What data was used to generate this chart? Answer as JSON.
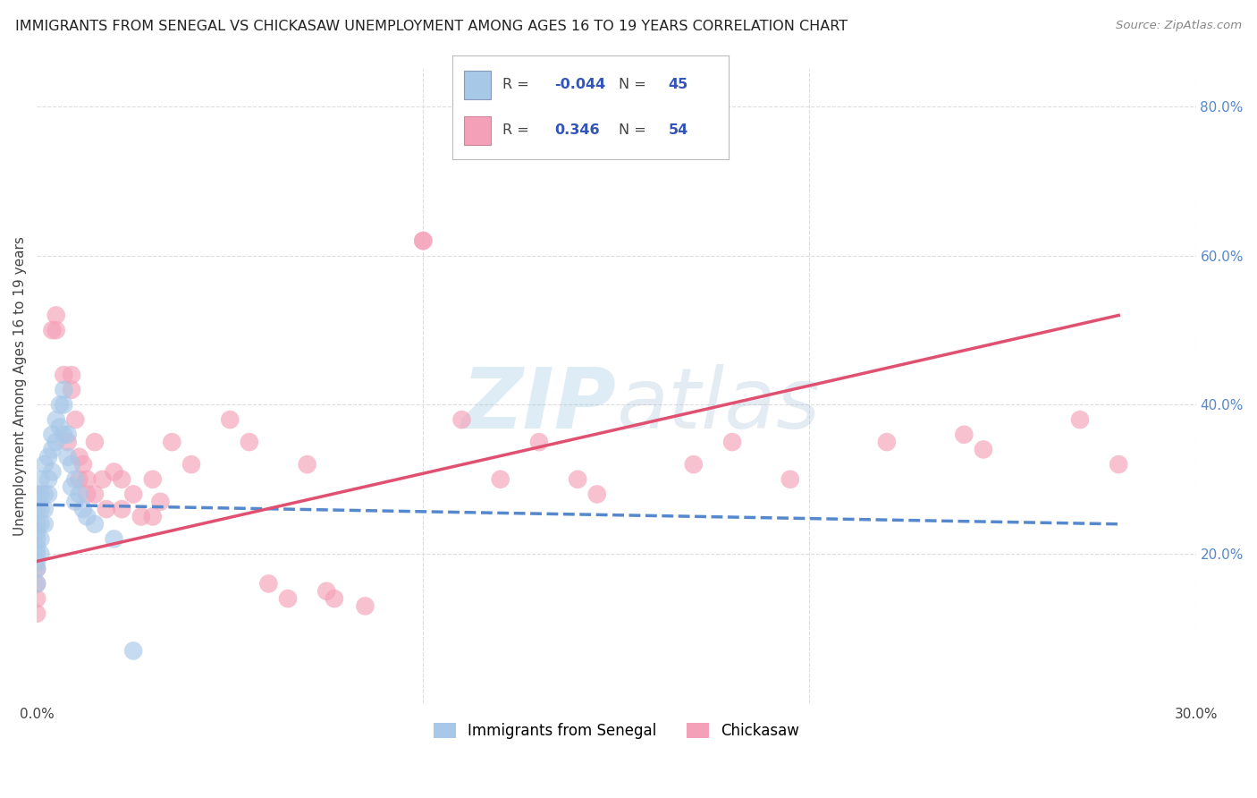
{
  "title": "IMMIGRANTS FROM SENEGAL VS CHICKASAW UNEMPLOYMENT AMONG AGES 16 TO 19 YEARS CORRELATION CHART",
  "source": "Source: ZipAtlas.com",
  "ylabel": "Unemployment Among Ages 16 to 19 years",
  "xlabel_blue": "Immigrants from Senegal",
  "xlabel_pink": "Chickasaw",
  "xlim": [
    0.0,
    0.3
  ],
  "ylim": [
    0.0,
    0.85
  ],
  "legend_blue_R": "-0.044",
  "legend_blue_N": "45",
  "legend_pink_R": "0.346",
  "legend_pink_N": "54",
  "blue_color": "#a8c8e8",
  "pink_color": "#f4a0b8",
  "trend_blue_color": "#5588cc",
  "trend_pink_color": "#e05070",
  "blue_scatter_x": [
    0.0,
    0.0,
    0.0,
    0.0,
    0.0,
    0.0,
    0.0,
    0.0,
    0.0,
    0.0,
    0.001,
    0.001,
    0.001,
    0.001,
    0.001,
    0.001,
    0.002,
    0.002,
    0.002,
    0.002,
    0.003,
    0.003,
    0.003,
    0.004,
    0.004,
    0.004,
    0.005,
    0.005,
    0.006,
    0.006,
    0.007,
    0.007,
    0.008,
    0.008,
    0.009,
    0.009,
    0.01,
    0.01,
    0.011,
    0.012,
    0.013,
    0.015,
    0.02,
    0.025,
    0.007
  ],
  "blue_scatter_y": [
    0.28,
    0.26,
    0.24,
    0.23,
    0.22,
    0.21,
    0.2,
    0.19,
    0.18,
    0.16,
    0.3,
    0.28,
    0.26,
    0.24,
    0.22,
    0.2,
    0.32,
    0.28,
    0.26,
    0.24,
    0.33,
    0.3,
    0.28,
    0.36,
    0.34,
    0.31,
    0.38,
    0.35,
    0.4,
    0.37,
    0.4,
    0.36,
    0.36,
    0.33,
    0.32,
    0.29,
    0.3,
    0.27,
    0.28,
    0.26,
    0.25,
    0.24,
    0.22,
    0.07,
    0.42
  ],
  "pink_scatter_x": [
    0.0,
    0.0,
    0.0,
    0.0,
    0.004,
    0.005,
    0.005,
    0.007,
    0.008,
    0.009,
    0.009,
    0.01,
    0.011,
    0.011,
    0.012,
    0.013,
    0.013,
    0.015,
    0.015,
    0.017,
    0.018,
    0.02,
    0.022,
    0.022,
    0.025,
    0.027,
    0.03,
    0.03,
    0.032,
    0.035,
    0.04,
    0.05,
    0.055,
    0.06,
    0.065,
    0.07,
    0.075,
    0.077,
    0.085,
    0.1,
    0.1,
    0.11,
    0.12,
    0.13,
    0.14,
    0.145,
    0.17,
    0.18,
    0.195,
    0.22,
    0.24,
    0.245,
    0.27,
    0.28
  ],
  "pink_scatter_y": [
    0.18,
    0.16,
    0.14,
    0.12,
    0.5,
    0.5,
    0.52,
    0.44,
    0.35,
    0.44,
    0.42,
    0.38,
    0.33,
    0.3,
    0.32,
    0.3,
    0.28,
    0.35,
    0.28,
    0.3,
    0.26,
    0.31,
    0.3,
    0.26,
    0.28,
    0.25,
    0.3,
    0.25,
    0.27,
    0.35,
    0.32,
    0.38,
    0.35,
    0.16,
    0.14,
    0.32,
    0.15,
    0.14,
    0.13,
    0.62,
    0.62,
    0.38,
    0.3,
    0.35,
    0.3,
    0.28,
    0.32,
    0.35,
    0.3,
    0.35,
    0.36,
    0.34,
    0.38,
    0.32
  ],
  "blue_trend_x": [
    0.0,
    0.28
  ],
  "blue_trend_y": [
    0.266,
    0.24
  ],
  "pink_trend_x": [
    0.0,
    0.28
  ],
  "pink_trend_y": [
    0.19,
    0.52
  ],
  "watermark_top": "ZIP",
  "watermark_bottom": "atlas",
  "background_color": "#ffffff",
  "grid_color": "#dddddd"
}
